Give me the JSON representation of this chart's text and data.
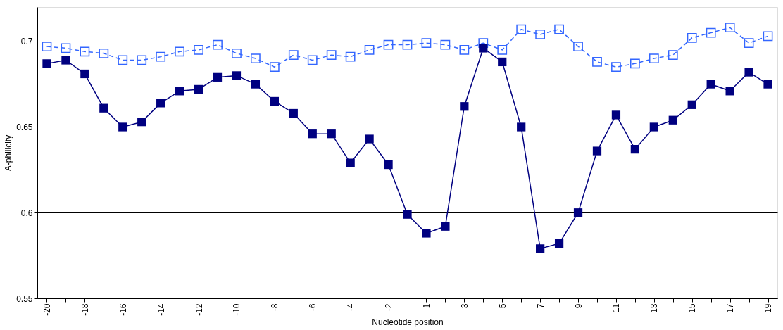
{
  "chart_data": {
    "type": "line",
    "xlabel": "Nucleotide position",
    "ylabel": "A-philicity",
    "categories": [
      "-20",
      null,
      "-18",
      null,
      "-16",
      null,
      "-14",
      null,
      "-12",
      null,
      "-10",
      null,
      "-8",
      null,
      "-6",
      null,
      "-4",
      null,
      "-2",
      null,
      "1",
      null,
      "3",
      null,
      "5",
      null,
      "7",
      null,
      "9",
      null,
      "11",
      null,
      "13",
      null,
      "15",
      null,
      "17",
      null,
      "19"
    ],
    "series": [
      {
        "color": "#3366ff",
        "line_style": "dashed",
        "marker": "square",
        "values": [
          0.697,
          0.696,
          0.694,
          0.693,
          0.689,
          0.689,
          0.691,
          0.694,
          0.695,
          0.698,
          0.693,
          0.69,
          0.685,
          0.692,
          0.689,
          0.692,
          0.691,
          0.695,
          0.698,
          0.698,
          0.699,
          0.698,
          0.695,
          0.699,
          0.695,
          0.707,
          0.704,
          0.707,
          0.697,
          0.688,
          0.685,
          0.687,
          0.69,
          0.692,
          0.702,
          0.705,
          0.708,
          0.699,
          0.703
        ]
      },
      {
        "color": "#000080",
        "line_style": "solid",
        "marker": "square",
        "values": [
          0.687,
          0.689,
          0.681,
          0.661,
          0.65,
          0.653,
          0.664,
          0.671,
          0.672,
          0.679,
          0.68,
          0.675,
          0.665,
          0.658,
          0.646,
          0.646,
          0.629,
          0.643,
          0.628,
          0.599,
          0.588,
          0.592,
          0.662,
          0.696,
          0.688,
          0.65,
          0.579,
          0.582,
          0.6,
          0.636,
          0.657,
          0.637,
          0.65,
          0.654,
          0.663,
          0.675,
          0.671,
          0.682,
          0.675
        ]
      }
    ],
    "ylim": [
      0.55,
      0.72
    ],
    "yticks": [
      0.55,
      0.6,
      0.65,
      0.7
    ],
    "grid": "y"
  }
}
